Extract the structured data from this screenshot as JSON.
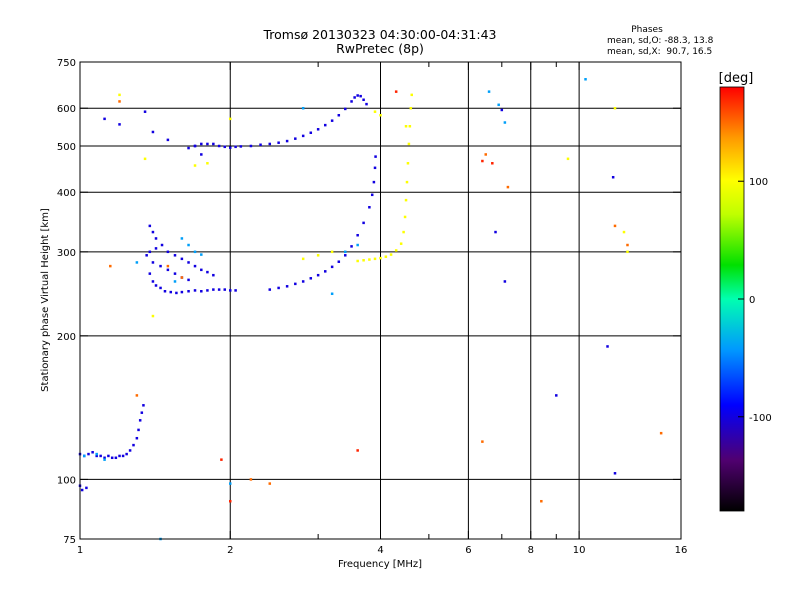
{
  "chart_data": {
    "type": "scatter",
    "title": "Tromsø 20130323 04:30:00-04:31:43",
    "subtitle": "RwPretec (8p)",
    "info": {
      "heading": "Phases",
      "line_o": "mean, sd,O: -88.3, 13.8",
      "line_x": "mean, sd,X:  90.7, 16.5"
    },
    "xlabel": "Frequency [MHz]",
    "ylabel": "Stationary phase Virtual Height [km]",
    "x_scale": "log",
    "y_scale": "log",
    "xlim": [
      1,
      16
    ],
    "ylim": [
      75,
      750
    ],
    "x_ticks": [
      1,
      2,
      4,
      6,
      8,
      10,
      16
    ],
    "x_minor": [
      3,
      5,
      7,
      9
    ],
    "y_ticks": [
      75,
      100,
      200,
      300,
      400,
      500,
      600,
      750
    ],
    "grid_x": [
      2,
      4,
      6,
      8,
      10
    ],
    "grid_y": [
      100,
      200,
      300,
      400,
      500,
      600
    ],
    "colorbar": {
      "label": "[deg]",
      "range": [
        -180,
        180
      ],
      "ticks": [
        -100,
        0,
        100
      ]
    },
    "series": [
      {
        "phase": -100,
        "points": [
          [
            1.0,
            113
          ],
          [
            1.02,
            112
          ],
          [
            1.04,
            113
          ],
          [
            1.06,
            114
          ],
          [
            1.08,
            112
          ],
          [
            1.1,
            112
          ],
          [
            1.12,
            111
          ],
          [
            1.14,
            112
          ],
          [
            1.16,
            111
          ],
          [
            1.18,
            111
          ],
          [
            1.2,
            112
          ],
          [
            1.22,
            112
          ],
          [
            1.24,
            113
          ],
          [
            1.26,
            115
          ],
          [
            1.28,
            118
          ],
          [
            1.3,
            122
          ],
          [
            1.31,
            127
          ],
          [
            1.32,
            133
          ],
          [
            1.33,
            138
          ],
          [
            1.34,
            143
          ],
          [
            1.0,
            97
          ],
          [
            1.01,
            95
          ],
          [
            1.03,
            96
          ],
          [
            1.36,
            295
          ],
          [
            1.38,
            270
          ],
          [
            1.4,
            260
          ],
          [
            1.42,
            255
          ],
          [
            1.45,
            252
          ],
          [
            1.48,
            248
          ],
          [
            1.52,
            247
          ],
          [
            1.56,
            246
          ],
          [
            1.6,
            247
          ],
          [
            1.65,
            248
          ],
          [
            1.7,
            249
          ],
          [
            1.75,
            248
          ],
          [
            1.8,
            249
          ],
          [
            1.85,
            250
          ],
          [
            1.9,
            250
          ],
          [
            1.95,
            250
          ],
          [
            2.0,
            249
          ],
          [
            2.05,
            249
          ],
          [
            1.38,
            340
          ],
          [
            1.4,
            330
          ],
          [
            1.42,
            320
          ],
          [
            1.46,
            310
          ],
          [
            1.5,
            300
          ],
          [
            1.55,
            295
          ],
          [
            1.6,
            290
          ],
          [
            1.65,
            285
          ],
          [
            1.7,
            280
          ],
          [
            1.75,
            275
          ],
          [
            1.8,
            272
          ],
          [
            1.85,
            268
          ],
          [
            1.4,
            285
          ],
          [
            1.45,
            280
          ],
          [
            1.5,
            275
          ],
          [
            1.55,
            270
          ],
          [
            1.6,
            265
          ],
          [
            1.65,
            262
          ],
          [
            1.38,
            300
          ],
          [
            1.42,
            305
          ],
          [
            1.65,
            495
          ],
          [
            1.7,
            500
          ],
          [
            1.75,
            505
          ],
          [
            1.8,
            505
          ],
          [
            1.85,
            505
          ],
          [
            1.9,
            500
          ],
          [
            1.95,
            498
          ],
          [
            2.0,
            496
          ],
          [
            2.05,
            498
          ],
          [
            2.1,
            499
          ],
          [
            2.2,
            500
          ],
          [
            2.3,
            503
          ],
          [
            2.4,
            505
          ],
          [
            2.5,
            508
          ],
          [
            2.6,
            512
          ],
          [
            2.7,
            518
          ],
          [
            2.8,
            525
          ],
          [
            2.9,
            533
          ],
          [
            3.0,
            542
          ],
          [
            3.1,
            553
          ],
          [
            3.2,
            565
          ],
          [
            3.3,
            580
          ],
          [
            3.4,
            598
          ],
          [
            3.5,
            620
          ],
          [
            3.55,
            632
          ],
          [
            3.6,
            638
          ],
          [
            3.65,
            636
          ],
          [
            3.7,
            625
          ],
          [
            3.75,
            612
          ],
          [
            2.4,
            250
          ],
          [
            2.5,
            252
          ],
          [
            2.6,
            254
          ],
          [
            2.7,
            257
          ],
          [
            2.8,
            260
          ],
          [
            2.9,
            264
          ],
          [
            3.0,
            268
          ],
          [
            3.1,
            273
          ],
          [
            3.2,
            279
          ],
          [
            3.3,
            286
          ],
          [
            3.4,
            295
          ],
          [
            3.5,
            308
          ],
          [
            3.6,
            325
          ],
          [
            3.7,
            345
          ],
          [
            3.8,
            372
          ],
          [
            3.85,
            395
          ],
          [
            3.88,
            420
          ],
          [
            3.9,
            450
          ],
          [
            3.91,
            475
          ],
          [
            1.12,
            570
          ],
          [
            1.2,
            555
          ],
          [
            1.35,
            590
          ],
          [
            1.4,
            535
          ],
          [
            1.5,
            515
          ],
          [
            1.7,
            500
          ],
          [
            1.75,
            480
          ],
          [
            7.0,
            595
          ],
          [
            9.0,
            150
          ],
          [
            11.8,
            103
          ],
          [
            11.7,
            430
          ],
          [
            11.4,
            190
          ],
          [
            7.1,
            260
          ],
          [
            6.8,
            330
          ]
        ]
      },
      {
        "phase": -40,
        "points": [
          [
            1.02,
            112
          ],
          [
            1.08,
            113
          ],
          [
            1.12,
            110
          ],
          [
            1.55,
            260
          ],
          [
            1.6,
            320
          ],
          [
            1.65,
            310
          ],
          [
            1.7,
            300
          ],
          [
            1.75,
            296
          ],
          [
            3.4,
            300
          ],
          [
            3.6,
            310
          ],
          [
            1.3,
            285
          ],
          [
            2.8,
            600
          ],
          [
            2.0,
            98
          ],
          [
            6.6,
            650
          ],
          [
            6.9,
            610
          ],
          [
            7.1,
            560
          ],
          [
            3.2,
            245
          ],
          [
            1.45,
            75
          ],
          [
            10.3,
            690
          ]
        ]
      },
      {
        "phase": 100,
        "points": [
          [
            3.9,
            290
          ],
          [
            4.0,
            291
          ],
          [
            4.1,
            293
          ],
          [
            4.2,
            296
          ],
          [
            4.3,
            302
          ],
          [
            4.4,
            312
          ],
          [
            4.45,
            330
          ],
          [
            4.48,
            355
          ],
          [
            4.5,
            385
          ],
          [
            4.52,
            420
          ],
          [
            4.54,
            460
          ],
          [
            4.56,
            505
          ],
          [
            4.58,
            550
          ],
          [
            4.6,
            600
          ],
          [
            4.62,
            640
          ],
          [
            4.5,
            550
          ],
          [
            3.6,
            287
          ],
          [
            3.7,
            288
          ],
          [
            3.8,
            289
          ],
          [
            2.8,
            290
          ],
          [
            3.0,
            295
          ],
          [
            3.2,
            300
          ],
          [
            1.7,
            455
          ],
          [
            1.8,
            460
          ],
          [
            2.0,
            570
          ],
          [
            3.9,
            590
          ],
          [
            4.0,
            580
          ],
          [
            1.2,
            640
          ],
          [
            1.35,
            470
          ],
          [
            1.4,
            220
          ],
          [
            11.8,
            600
          ],
          [
            12.5,
            300
          ],
          [
            12.3,
            330
          ],
          [
            9.5,
            470
          ]
        ]
      },
      {
        "phase": 150,
        "points": [
          [
            1.15,
            280
          ],
          [
            1.2,
            620
          ],
          [
            1.5,
            280
          ],
          [
            1.6,
            265
          ],
          [
            1.3,
            150
          ],
          [
            2.2,
            100
          ],
          [
            2.4,
            98
          ],
          [
            7.2,
            410
          ],
          [
            6.5,
            480
          ],
          [
            6.4,
            120
          ],
          [
            11.8,
            340
          ],
          [
            12.5,
            310
          ],
          [
            14.6,
            125
          ],
          [
            8.4,
            90
          ]
        ]
      },
      {
        "phase": 170,
        "points": [
          [
            6.4,
            465
          ],
          [
            6.7,
            460
          ],
          [
            4.3,
            650
          ],
          [
            1.92,
            110
          ],
          [
            3.6,
            115
          ],
          [
            2.0,
            90
          ]
        ]
      }
    ]
  }
}
